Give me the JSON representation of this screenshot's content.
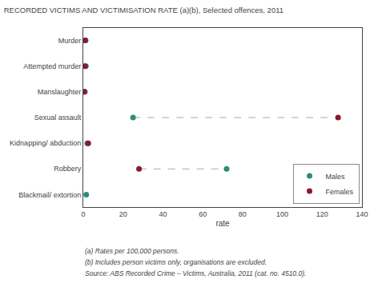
{
  "chart_data": {
    "type": "scatter",
    "title": "RECORDED VICTIMS AND VICTIMISATION RATE (a)(b), Selected offences, 2011",
    "categories": [
      "Murder",
      "Attempted murder",
      "Manslaughter",
      "Sexual assault",
      "Kidnapping/ abduction",
      "Robbery",
      "Blackmail/ extortion"
    ],
    "series": [
      {
        "name": "Males",
        "color": "#2E8B7A",
        "values": [
          1.2,
          1.3,
          0.8,
          25.0,
          2.0,
          72.0,
          1.5
        ]
      },
      {
        "name": "Females",
        "color": "#8B1A2E",
        "values": [
          0.9,
          0.9,
          0.5,
          128.0,
          2.5,
          28.0,
          null
        ]
      }
    ],
    "orientation": "horizontal",
    "marker": "circle",
    "x_label": "rate",
    "xlim": [
      0,
      140
    ],
    "xticks": [
      0,
      20,
      40,
      60,
      80,
      100,
      120,
      140
    ],
    "grid": false,
    "legend": "lower right",
    "annotations": [
      "(a) Rates per 100,000 persons.",
      "(b) Includes person victims only, organisations are excluded.",
      "Source: ABS Recorded Crime – Victims, Australia, 2011 (cat. no. 4510.0)."
    ]
  }
}
